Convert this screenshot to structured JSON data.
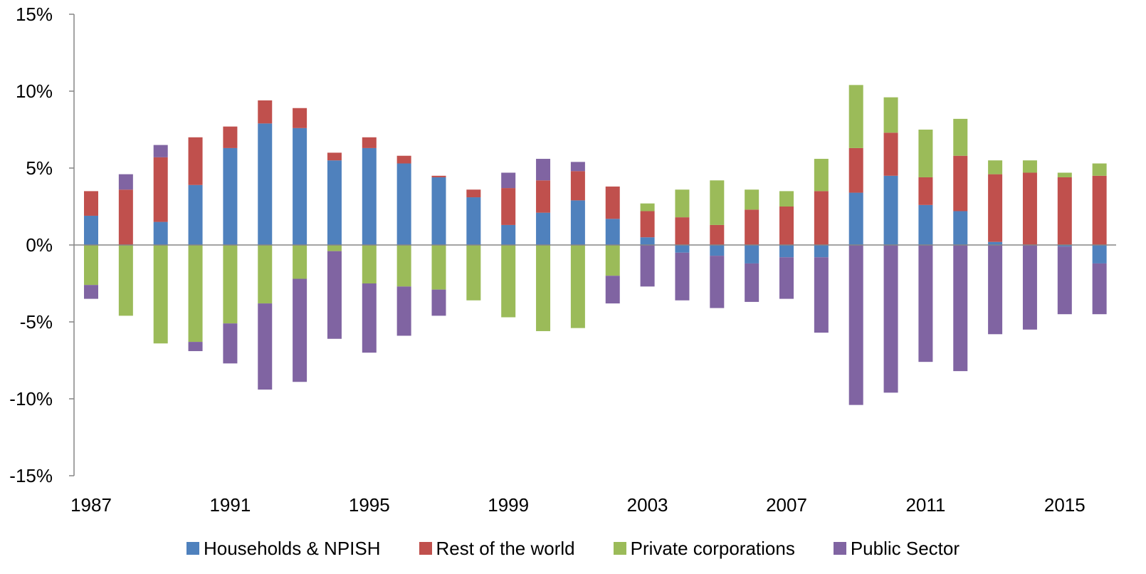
{
  "chart_data": {
    "type": "bar",
    "stacked": true,
    "title": "",
    "xlabel": "",
    "ylabel": "",
    "ylim": [
      -0.15,
      0.15
    ],
    "y_ticks": [
      {
        "value": 0.15,
        "label": "15%"
      },
      {
        "value": 0.1,
        "label": "10%"
      },
      {
        "value": 0.05,
        "label": "5%"
      },
      {
        "value": 0.0,
        "label": "0%"
      },
      {
        "value": -0.05,
        "label": "-5%"
      },
      {
        "value": -0.1,
        "label": "-10%"
      },
      {
        "value": -0.15,
        "label": "-15%"
      }
    ],
    "x_tick_labels": [
      {
        "year": 1987,
        "label": "1987"
      },
      {
        "year": 1991,
        "label": "1991"
      },
      {
        "year": 1995,
        "label": "1995"
      },
      {
        "year": 1999,
        "label": "1999"
      },
      {
        "year": 2003,
        "label": "2003"
      },
      {
        "year": 2007,
        "label": "2007"
      },
      {
        "year": 2011,
        "label": "2011"
      },
      {
        "year": 2015,
        "label": "2015"
      }
    ],
    "categories": [
      1987,
      1988,
      1989,
      1990,
      1991,
      1992,
      1993,
      1994,
      1995,
      1996,
      1997,
      1998,
      1999,
      2000,
      2001,
      2002,
      2003,
      2004,
      2005,
      2006,
      2007,
      2008,
      2009,
      2010,
      2011,
      2012,
      2013,
      2014,
      2015,
      2016
    ],
    "grid": false,
    "legend_position": "bottom",
    "series": [
      {
        "name": "Households & NPISH",
        "color": "#4F81BD",
        "values": [
          0.019,
          0,
          0.015,
          0.039,
          0.063,
          0.079,
          0.076,
          0.055,
          0.063,
          0.053,
          0.044,
          0.031,
          0.013,
          0.021,
          0.029,
          0.017,
          0.005,
          -0.005,
          -0.007,
          -0.012,
          -0.008,
          -0.008,
          0.034,
          0.045,
          0.026,
          0.022,
          0.002,
          0,
          -0.001,
          -0.012
        ]
      },
      {
        "name": "Rest of the world",
        "color": "#C0504D",
        "values": [
          0.016,
          0.036,
          0.042,
          0.031,
          0.014,
          0.015,
          0.013,
          0.005,
          0.007,
          0.005,
          0.001,
          0.005,
          0.024,
          0.021,
          0.019,
          0.021,
          0.017,
          0.018,
          0.013,
          0.023,
          0.025,
          0.035,
          0.029,
          0.028,
          0.018,
          0.036,
          0.044,
          0.047,
          0.044,
          0.045
        ]
      },
      {
        "name": "Private corporations",
        "color": "#9BBB59",
        "values": [
          -0.026,
          -0.046,
          -0.064,
          -0.063,
          -0.051,
          -0.038,
          -0.022,
          -0.004,
          -0.025,
          -0.027,
          -0.029,
          -0.036,
          -0.047,
          -0.056,
          -0.054,
          -0.02,
          0.005,
          0.018,
          0.029,
          0.013,
          0.01,
          0.021,
          0.041,
          0.023,
          0.031,
          0.024,
          0.009,
          0.008,
          0.003,
          0.008
        ]
      },
      {
        "name": "Public Sector",
        "color": "#8064A2",
        "values": [
          -0.009,
          0.01,
          0.008,
          -0.006,
          -0.026,
          -0.056,
          -0.067,
          -0.057,
          -0.045,
          -0.032,
          -0.017,
          0,
          0.01,
          0.014,
          0.006,
          -0.018,
          -0.027,
          -0.031,
          -0.034,
          -0.025,
          -0.027,
          -0.049,
          -0.104,
          -0.096,
          -0.076,
          -0.082,
          -0.058,
          -0.055,
          -0.044,
          -0.033
        ]
      }
    ]
  }
}
